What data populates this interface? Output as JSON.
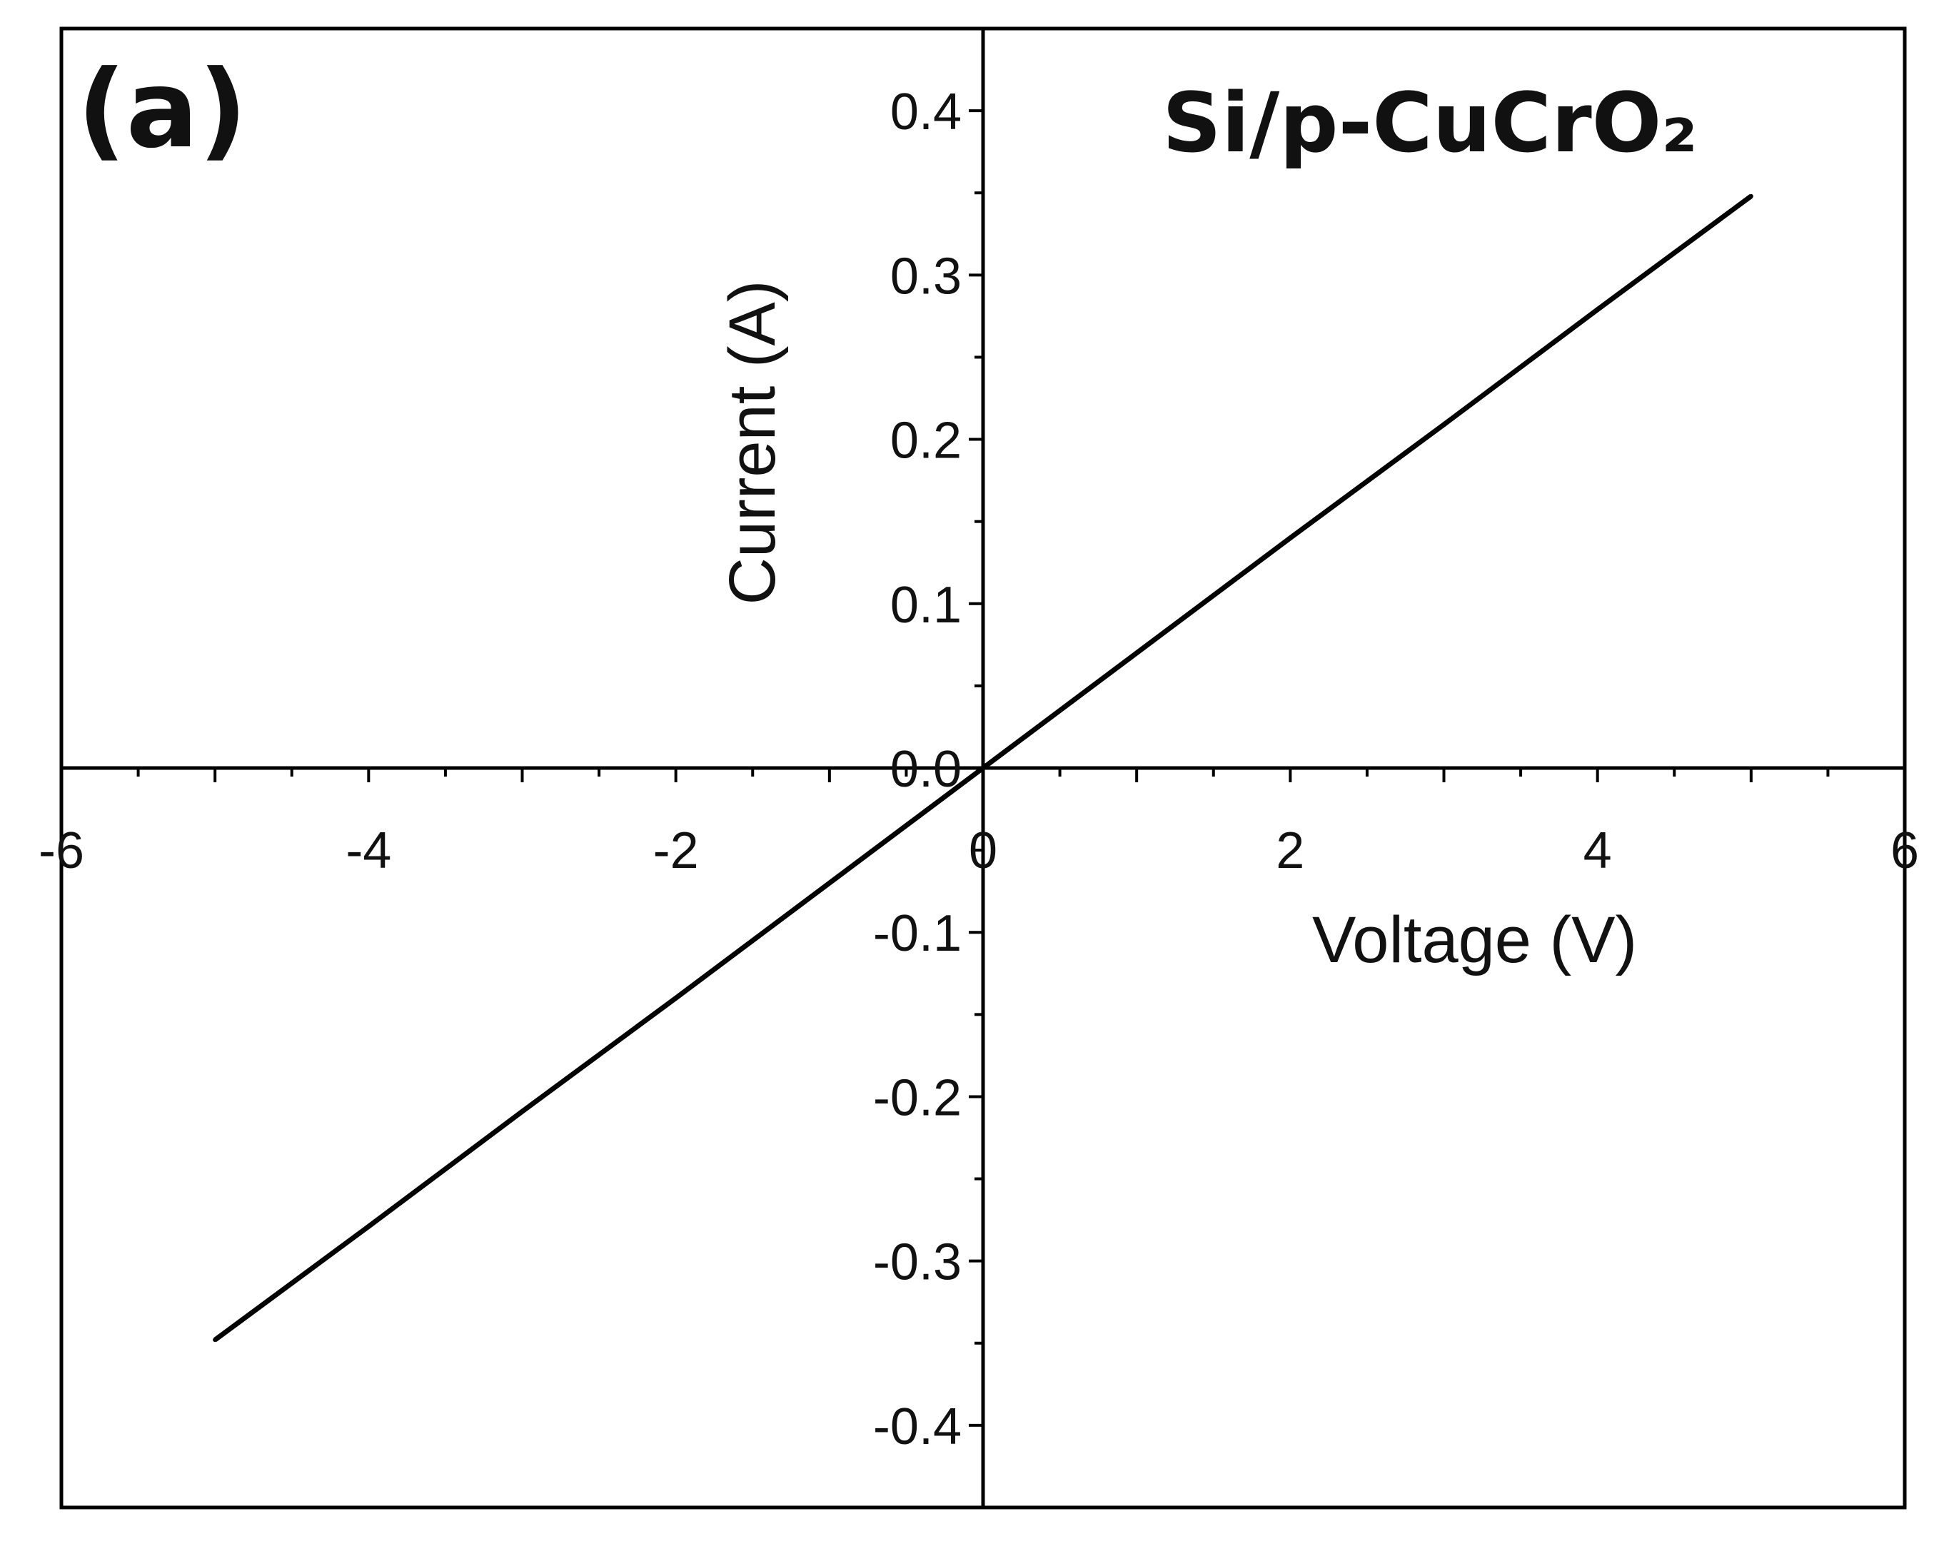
{
  "chart_data": {
    "type": "line",
    "panel_label": "(a)",
    "sample_label": "Si/p-CuCrO₂",
    "xlabel": "Voltage (V)",
    "ylabel": "Current (A)",
    "xlim": [
      -6,
      6
    ],
    "ylim": [
      -0.45,
      0.45
    ],
    "x_ticks": [
      -6,
      -4,
      -2,
      0,
      2,
      4,
      6
    ],
    "x_tick_labels": [
      "-6",
      "-4",
      "-2",
      "0",
      "2",
      "4",
      "6"
    ],
    "y_ticks": [
      -0.4,
      -0.3,
      -0.2,
      -0.1,
      0.0,
      0.1,
      0.2,
      0.3,
      0.4
    ],
    "y_tick_labels": [
      "-0.4",
      "-0.3",
      "-0.2",
      "-0.1",
      "0.0",
      "0.1",
      "0.2",
      "0.3",
      "0.4"
    ],
    "grid": false,
    "axes_cross_at_origin": true,
    "line_color": "#000000",
    "series": [
      {
        "x": [
          -5,
          -4,
          -3,
          -2,
          -1,
          0,
          1,
          2,
          3,
          4,
          5
        ],
        "y": [
          -0.348,
          -0.279,
          -0.209,
          -0.14,
          -0.07,
          0.0,
          0.07,
          0.14,
          0.209,
          0.279,
          0.348
        ]
      }
    ]
  }
}
